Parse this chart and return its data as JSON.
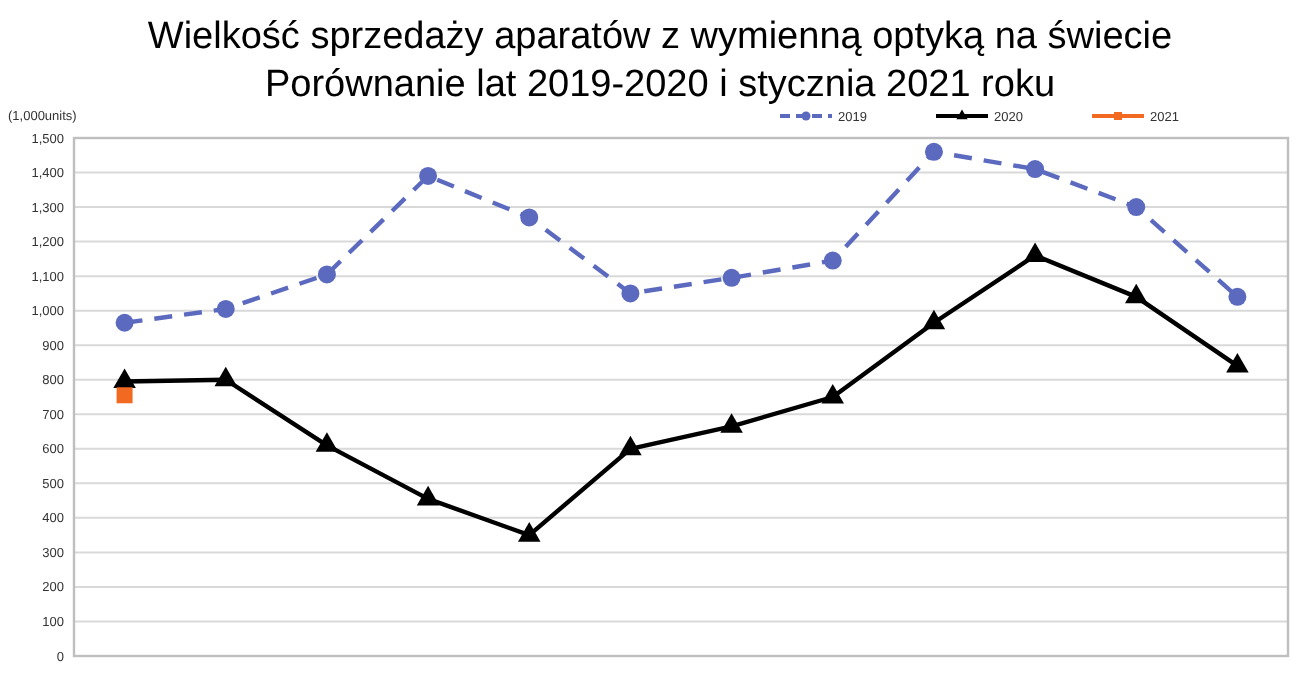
{
  "chart_data": {
    "type": "line",
    "title": "Wielkość sprzedaży aparatów z wymienną optyką na świecie",
    "subtitle": "Porównanie lat 2019-2020 i stycznia 2021 roku",
    "ylabel": "(1,000units)",
    "categories": [
      null,
      null,
      null,
      null,
      null,
      null,
      null,
      null,
      null,
      null,
      null,
      null
    ],
    "series": [
      {
        "name": "2019",
        "color": "#5b6abf",
        "marker": "circle",
        "line_style": "dashed",
        "values": [
          965,
          1005,
          1105,
          1390,
          1270,
          1050,
          1095,
          1145,
          1460,
          1410,
          1300,
          1040
        ]
      },
      {
        "name": "2020",
        "color": "#000000",
        "marker": "triangle",
        "line_style": "solid",
        "values": [
          795,
          800,
          610,
          455,
          350,
          600,
          665,
          750,
          965,
          1160,
          1040,
          840
        ]
      },
      {
        "name": "2021",
        "color": "#f26a21",
        "marker": "square",
        "line_style": "solid",
        "values": [
          755,
          null,
          null,
          null,
          null,
          null,
          null,
          null,
          null,
          null,
          null,
          null
        ]
      }
    ],
    "ylim": [
      0,
      1500
    ],
    "yticks": [
      {
        "value": 0,
        "label": "0"
      },
      {
        "value": 100,
        "label": "100"
      },
      {
        "value": 200,
        "label": "200"
      },
      {
        "value": 300,
        "label": "300"
      },
      {
        "value": 400,
        "label": "400"
      },
      {
        "value": 500,
        "label": "500"
      },
      {
        "value": 600,
        "label": "600"
      },
      {
        "value": 700,
        "label": "700"
      },
      {
        "value": 800,
        "label": "800"
      },
      {
        "value": 900,
        "label": "900"
      },
      {
        "value": 1000,
        "label": "1,000"
      },
      {
        "value": 1100,
        "label": "1,100"
      },
      {
        "value": 1200,
        "label": "1,200"
      },
      {
        "value": 1300,
        "label": "1,300"
      },
      {
        "value": 1400,
        "label": "1,400"
      },
      {
        "value": 1500,
        "label": "1,500"
      }
    ],
    "grid": "y",
    "legend": "top right"
  }
}
